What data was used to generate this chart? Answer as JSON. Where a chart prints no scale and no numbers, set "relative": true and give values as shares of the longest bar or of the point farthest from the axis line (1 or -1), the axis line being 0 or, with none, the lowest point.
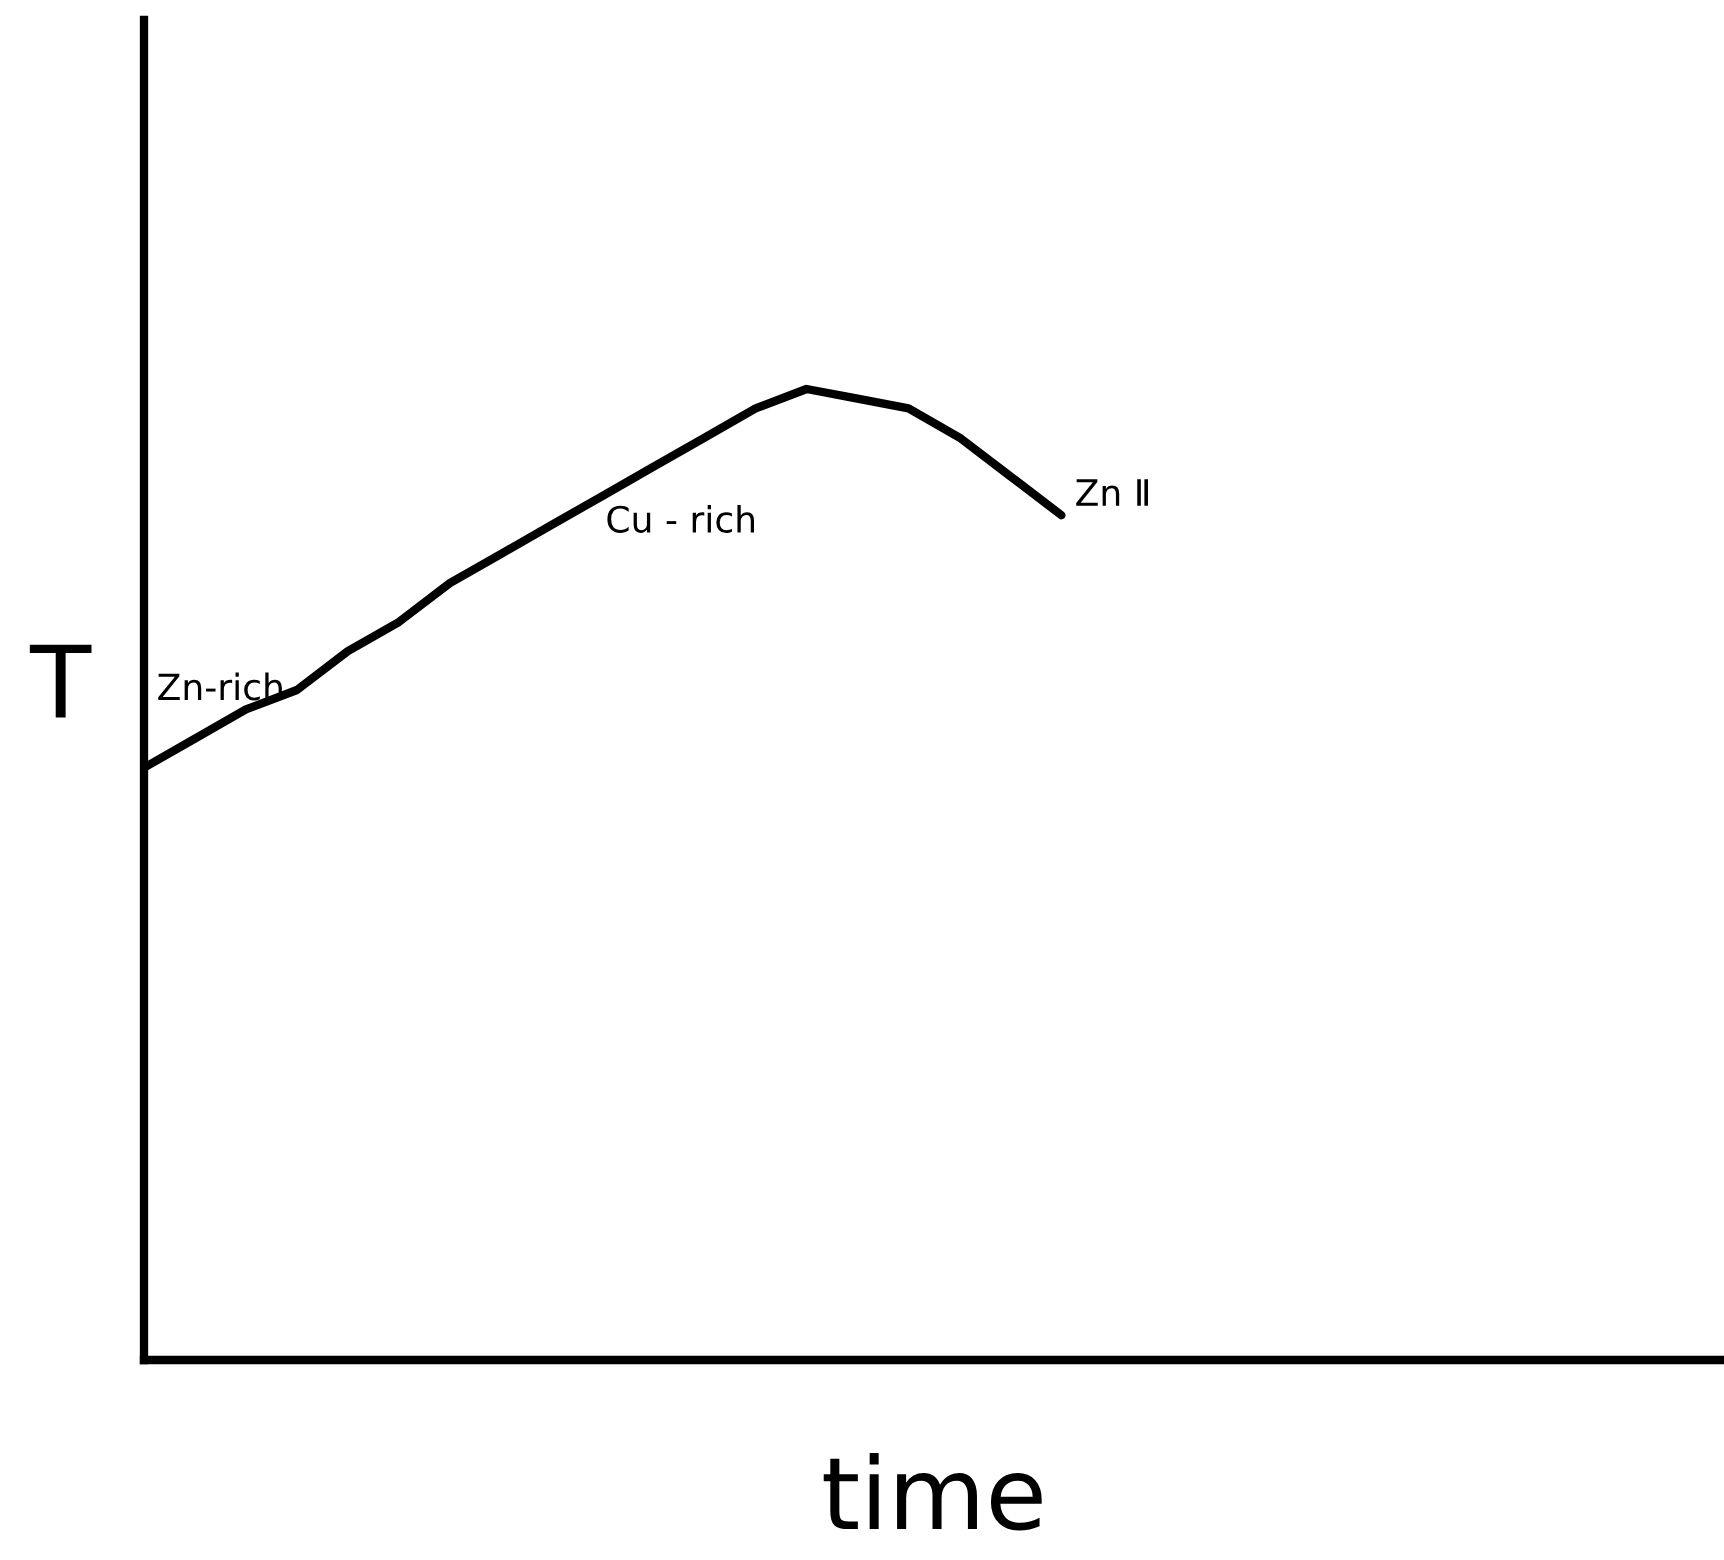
{
  "chart_data": {
    "type": "line",
    "relative": true,
    "xlabel": "time",
    "ylabel": "T",
    "color": "#000000",
    "legend": false,
    "grid": false,
    "marker": "none",
    "line_style": "solid",
    "categories": [
      null,
      null,
      null,
      null,
      null,
      null,
      null,
      null,
      null,
      null,
      null,
      null,
      null,
      null,
      null,
      null,
      null,
      null,
      null,
      null,
      null,
      null,
      null,
      null,
      null,
      null,
      null,
      null,
      null,
      null,
      null,
      null
    ],
    "values": [
      0.61,
      0.64,
      0.67,
      0.69,
      0.73,
      0.76,
      0.8,
      0.83,
      0.86,
      0.89,
      0.92,
      0.95,
      0.98,
      1.0,
      0.99,
      0.98,
      0.95,
      0.91,
      0.87,
      null,
      null,
      null,
      null,
      null,
      null,
      null,
      null,
      null,
      null,
      null,
      null,
      null
    ],
    "annotations": [
      "Zn-rich",
      "Cu - rich",
      "Zn Ⅱ"
    ]
  }
}
